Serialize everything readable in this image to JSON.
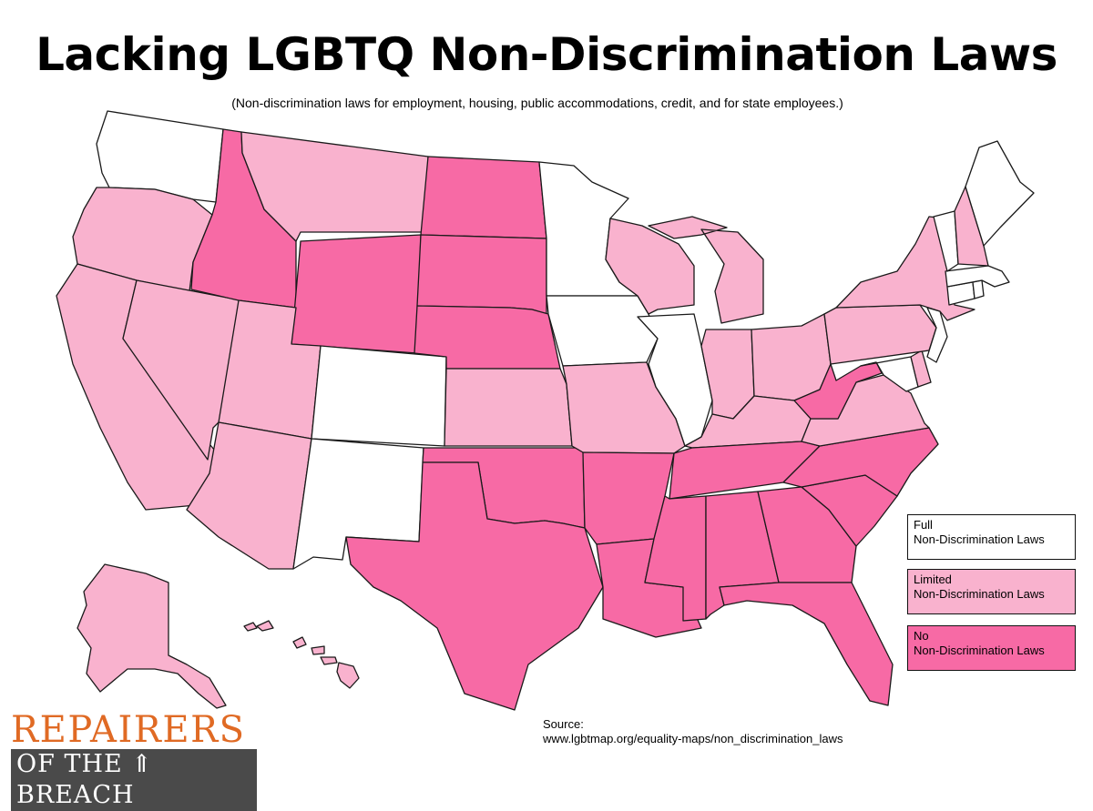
{
  "title": "Lacking LGBTQ Non-Discrimination Laws",
  "subtitle": "(Non-discrimination laws for employment, housing, public accommodations, credit, and for state employees.)",
  "colors": {
    "full": "#ffffff",
    "limited": "#f9b2ce",
    "none": "#f76aa5",
    "logo_orange": "#e06a24",
    "logo_gray": "#4a4a4a"
  },
  "legend": [
    {
      "category": "full",
      "line1": "Full",
      "line2": "Non-Discrimination Laws"
    },
    {
      "category": "limited",
      "line1": "Limited",
      "line2": "Non-Discrimination Laws"
    },
    {
      "category": "none",
      "line1": "No",
      "line2": "Non-Discrimination Laws"
    }
  ],
  "source": {
    "label": "Source:",
    "url": "www.lgbtmap.org/equality-maps/non_discrimination_laws"
  },
  "logo": {
    "line1": "REPAIRERS",
    "line2": "OF THE ⇑ BREACH"
  },
  "states": {
    "washington": "full",
    "oregon": "limited",
    "california": "limited",
    "nevada": "limited",
    "idaho": "none",
    "montana": "limited",
    "wyoming": "none",
    "utah": "limited",
    "colorado": "full",
    "arizona": "limited",
    "new_mexico": "full",
    "north_dakota": "none",
    "south_dakota": "none",
    "nebraska": "none",
    "kansas": "limited",
    "oklahoma": "none",
    "texas": "none",
    "minnesota": "full",
    "iowa": "full",
    "missouri": "limited",
    "arkansas": "none",
    "louisiana": "none",
    "wisconsin": "limited",
    "illinois": "full",
    "michigan": "limited",
    "indiana": "limited",
    "ohio": "limited",
    "kentucky": "limited",
    "tennessee": "none",
    "mississippi": "none",
    "alabama": "none",
    "georgia": "none",
    "florida": "none",
    "south_carolina": "none",
    "north_carolina": "none",
    "virginia": "limited",
    "west_virginia": "none",
    "maryland": "full",
    "delaware": "limited",
    "pennsylvania": "limited",
    "new_jersey": "full",
    "new_york": "limited",
    "connecticut": "full",
    "rhode_island": "full",
    "massachusetts": "full",
    "vermont": "full",
    "new_hampshire": "limited",
    "maine": "full",
    "alaska": "limited",
    "hawaii": "limited"
  }
}
